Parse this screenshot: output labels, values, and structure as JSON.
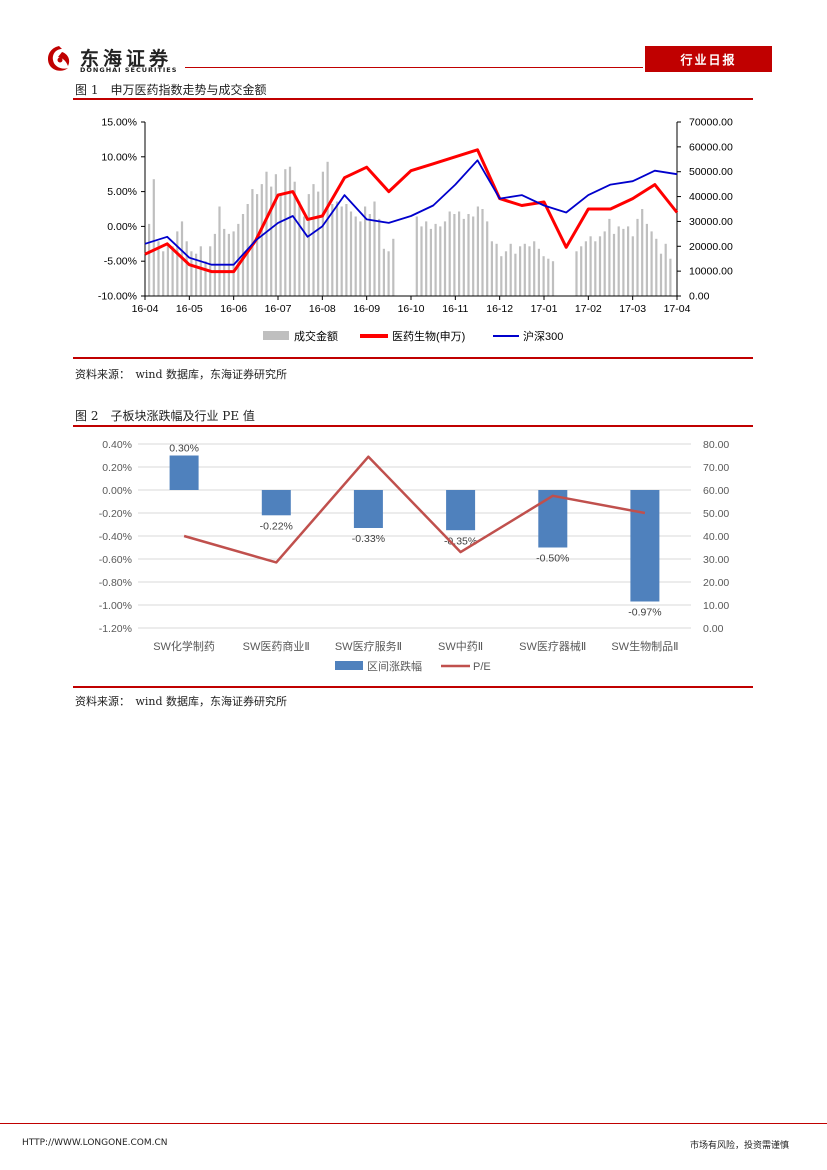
{
  "header": {
    "logo_cn": "东海证券",
    "logo_en": "DONGHAI SECURITIES",
    "report_type": "行业日报"
  },
  "figure1": {
    "title": "图 1　申万医药指数走势与成交金额",
    "source": "资料来源：　wind 数据库，东海证券研究所"
  },
  "figure2": {
    "title": "图 2　子板块涨跌幅及行业 PE 值",
    "source": "资料来源：　wind 数据库，东海证券研究所"
  },
  "footer": {
    "url": "HTTP://WWW.LONGONE.COM.CN",
    "note": "市场有风险，投资需谨慎"
  },
  "colors": {
    "brand_red": "#c00000",
    "volume_gray": "#bfbfbf",
    "pharma_red": "#ff0000",
    "csi300_blue": "#0000cc",
    "bar_blue": "#4f81bd",
    "pe_line": "#c0504d"
  },
  "chart_data": [
    {
      "type": "line",
      "title": "",
      "x_ticks": [
        "16-04",
        "16-05",
        "16-06",
        "16-07",
        "16-08",
        "16-09",
        "16-10",
        "16-11",
        "16-12",
        "17-01",
        "17-02",
        "17-03",
        "17-04"
      ],
      "y_left": {
        "ticks": [
          "15.00%",
          "10.00%",
          "5.00%",
          "0.00%",
          "-5.00%",
          "-10.00%"
        ],
        "range": [
          -10,
          15
        ],
        "unit": "%"
      },
      "y_right": {
        "ticks": [
          "70000.00",
          "60000.00",
          "50000.00",
          "40000.00",
          "30000.00",
          "20000.00",
          "10000.00",
          "0.00"
        ],
        "range": [
          0,
          70000
        ]
      },
      "legend_position": "bottom",
      "series": [
        {
          "name": "成交金额",
          "kind": "bar",
          "axis": "right",
          "sample_interval": "~3 trading days",
          "values": [
            29000,
            47000,
            22000,
            18000,
            21000,
            20000,
            26000,
            30000,
            22000,
            18000,
            17000,
            20000,
            14000,
            20000,
            25000,
            36000,
            27000,
            25000,
            26000,
            29000,
            33000,
            37000,
            43000,
            41000,
            45000,
            50000,
            44000,
            49000,
            41000,
            51000,
            52000,
            46000,
            38000,
            32000,
            41000,
            45000,
            42000,
            50000,
            54000,
            37000,
            38000,
            36000,
            37000,
            34000,
            32000,
            30000,
            36000,
            33000,
            38000,
            31000,
            19000,
            18000,
            23000,
            0,
            0,
            0,
            0,
            32000,
            28000,
            30000,
            27000,
            29000,
            28000,
            30000,
            34000,
            33000,
            34000,
            31000,
            33000,
            32000,
            36000,
            35000,
            30000,
            22000,
            21000,
            16000,
            18000,
            21000,
            17000,
            20000,
            21000,
            20000,
            22000,
            19000,
            16000,
            15000,
            14000,
            0,
            0,
            0,
            0,
            18000,
            20000,
            22000,
            24000,
            22000,
            24000,
            26000,
            31000,
            25000,
            28000,
            27000,
            28000,
            24000,
            31000,
            35000,
            29000,
            26000,
            23000,
            17000,
            21000,
            15000
          ]
        },
        {
          "name": "医药生物(申万)",
          "kind": "line",
          "axis": "left",
          "x": [
            "16-04",
            "16-04-15",
            "16-05",
            "16-05-15",
            "16-06",
            "16-06-15",
            "16-07",
            "16-07-10",
            "16-07-20",
            "16-08",
            "16-08-15",
            "16-09",
            "16-09-15",
            "16-10",
            "16-10-15",
            "16-11",
            "16-11-15",
            "16-12",
            "16-12-15",
            "17-01",
            "17-01-15",
            "17-02",
            "17-02-15",
            "17-03",
            "17-03-15",
            "17-04"
          ],
          "values": [
            -4.0,
            -2.5,
            -5.5,
            -6.5,
            -6.5,
            -2.0,
            4.5,
            5.0,
            1.0,
            1.5,
            7.0,
            8.5,
            5.0,
            8.0,
            9.0,
            10.0,
            11.0,
            4.0,
            3.0,
            3.5,
            -3.0,
            2.5,
            2.5,
            4.0,
            6.0,
            2.0
          ]
        },
        {
          "name": "沪深300",
          "kind": "line",
          "axis": "left",
          "x": [
            "16-04",
            "16-04-15",
            "16-05",
            "16-05-15",
            "16-06",
            "16-06-15",
            "16-07",
            "16-07-10",
            "16-07-20",
            "16-08",
            "16-08-15",
            "16-09",
            "16-09-15",
            "16-10",
            "16-10-15",
            "16-11",
            "16-11-15",
            "16-12",
            "16-12-15",
            "17-01",
            "17-01-15",
            "17-02",
            "17-02-15",
            "17-03",
            "17-03-15",
            "17-04"
          ],
          "values": [
            -2.5,
            -1.5,
            -4.5,
            -5.5,
            -5.5,
            -2.0,
            0.5,
            1.5,
            -1.5,
            0.0,
            4.5,
            1.0,
            0.5,
            1.5,
            3.0,
            6.0,
            9.5,
            4.0,
            4.5,
            3.0,
            2.0,
            4.5,
            6.0,
            6.5,
            8.0,
            7.5
          ]
        }
      ]
    },
    {
      "type": "bar",
      "title": "",
      "categories": [
        "SW化学制药",
        "SW医药商业Ⅱ",
        "SW医疗服务Ⅱ",
        "SW中药Ⅱ",
        "SW医疗器械Ⅱ",
        "SW生物制品Ⅱ"
      ],
      "y_left": {
        "ticks": [
          "0.40%",
          "0.20%",
          "0.00%",
          "-0.20%",
          "-0.40%",
          "-0.60%",
          "-0.80%",
          "-1.00%",
          "-1.20%"
        ],
        "range": [
          -1.2,
          0.4
        ]
      },
      "y_right": {
        "ticks": [
          "80.00",
          "70.00",
          "60.00",
          "50.00",
          "40.00",
          "30.00",
          "20.00",
          "10.00",
          "0.00"
        ],
        "range": [
          0,
          80
        ]
      },
      "legend_position": "bottom",
      "series": [
        {
          "name": "区间涨跌幅",
          "kind": "bar",
          "axis": "left",
          "values": [
            0.3,
            -0.22,
            -0.33,
            -0.35,
            -0.5,
            -0.97
          ],
          "labels": [
            "0.30%",
            "-0.22%",
            "-0.33%",
            "-0.35%",
            "-0.50%",
            "-0.97%"
          ]
        },
        {
          "name": "P/E",
          "kind": "line",
          "axis": "right",
          "values": [
            40.0,
            28.5,
            74.5,
            33.0,
            57.5,
            50.0
          ]
        }
      ]
    }
  ]
}
